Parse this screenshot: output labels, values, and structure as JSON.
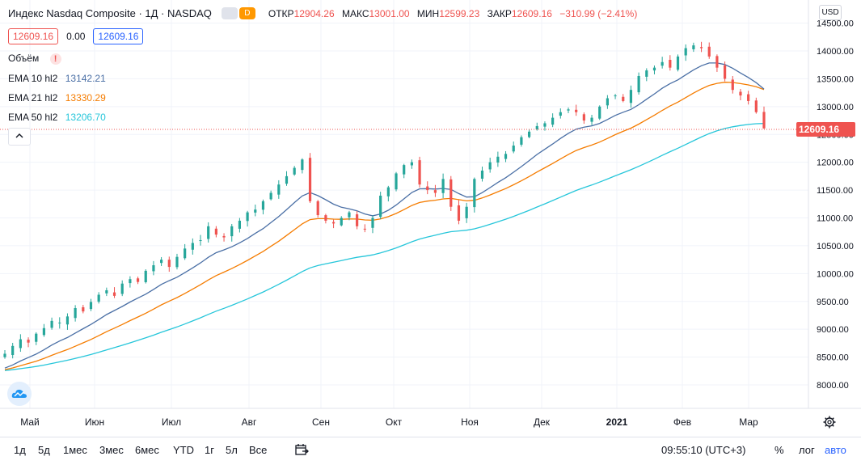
{
  "header": {
    "symbol_title": "Индекс Nasdaq Composite · 1Д · NASDAQ",
    "interval_badge": "D",
    "ohlc": [
      {
        "key": "ОТКР",
        "value": "12904.26"
      },
      {
        "key": "МАКС",
        "value": "13001.00"
      },
      {
        "key": "МИН",
        "value": "12599.23"
      },
      {
        "key": "ЗАКР",
        "value": "12609.16"
      },
      {
        "key": "",
        "value": "−310.99 (−2.41%)"
      }
    ],
    "bid": "12609.16",
    "spread": "0.00",
    "ask": "12609.16"
  },
  "indicators": {
    "volume_label": "Объём",
    "volume_warning": "!",
    "ema10": {
      "label": "EMA 10 hl2",
      "value": "13142.21",
      "color": "#4a6fa5"
    },
    "ema21": {
      "label": "EMA 21 hl2",
      "value": "13330.29",
      "color": "#f57c00"
    },
    "ema50": {
      "label": "EMA 50 hl2",
      "value": "13206.70",
      "color": "#26c6da"
    },
    "collapse_icon": "chevron-up-icon"
  },
  "price_scale": {
    "currency": "USD",
    "last_price": "12609.16",
    "ticks": [
      "14500.00",
      "14000.00",
      "13500.00",
      "13000.00",
      "12500.00",
      "12000.00",
      "11500.00",
      "11000.00",
      "10500.00",
      "10000.00",
      "9500.00",
      "9000.00",
      "8500.00",
      "8000.00"
    ]
  },
  "colors": {
    "up": "#26a69a",
    "down": "#ef5350",
    "grid": "#f0f3fa"
  },
  "bottom_toolbar": {
    "timeframes": [
      "1д",
      "5д",
      "1мес",
      "3мес",
      "6мес",
      "YTD",
      "1г",
      "5л",
      "Все"
    ],
    "clock": "09:55:10 (UTC+3)",
    "percent": "%",
    "log": "лог",
    "auto": "авто"
  },
  "chart_data": {
    "type": "candlestick",
    "title": "Индекс Nasdaq Composite · 1Д · NASDAQ",
    "x_tick_labels": [
      "Май",
      "Июн",
      "Июл",
      "Авг",
      "Сен",
      "Окт",
      "Ноя",
      "Дек",
      "2021",
      "Фев",
      "Мар"
    ],
    "ylim": [
      7700,
      14700
    ],
    "last_close": 12609.16,
    "series": [
      {
        "name": "Close (approx.)",
        "kind": "candles",
        "values": [
          8560,
          8700,
          8820,
          8760,
          8920,
          9020,
          9150,
          9120,
          9230,
          9380,
          9320,
          9490,
          9620,
          9700,
          9600,
          9820,
          9900,
          9850,
          10050,
          10150,
          10250,
          10120,
          10300,
          10450,
          10550,
          10600,
          10850,
          10700,
          10650,
          10850,
          10950,
          11100,
          11150,
          11300,
          11450,
          11600,
          11750,
          11900,
          12050,
          11300,
          11050,
          10950,
          10900,
          11000,
          11100,
          10850,
          10800,
          11000,
          11400,
          11550,
          11800,
          11950,
          12000,
          11600,
          11500,
          11450,
          11700,
          11200,
          10950,
          11200,
          11700,
          11850,
          12000,
          12100,
          12150,
          12300,
          12450,
          12550,
          12650,
          12700,
          12800,
          12900,
          12950,
          12900,
          12750,
          12800,
          13000,
          13150,
          13200,
          13100,
          13300,
          13550,
          13650,
          13700,
          13800,
          13700,
          13900,
          14050,
          14100,
          14050,
          13900,
          13700,
          13500,
          13300,
          13200,
          13100,
          12900,
          12609
        ]
      },
      {
        "name": "EMA 10 hl2",
        "kind": "line",
        "value": 13142.21
      },
      {
        "name": "EMA 21 hl2",
        "kind": "line",
        "value": 13330.29
      },
      {
        "name": "EMA 50 hl2",
        "kind": "line",
        "value": 13206.7
      }
    ]
  }
}
